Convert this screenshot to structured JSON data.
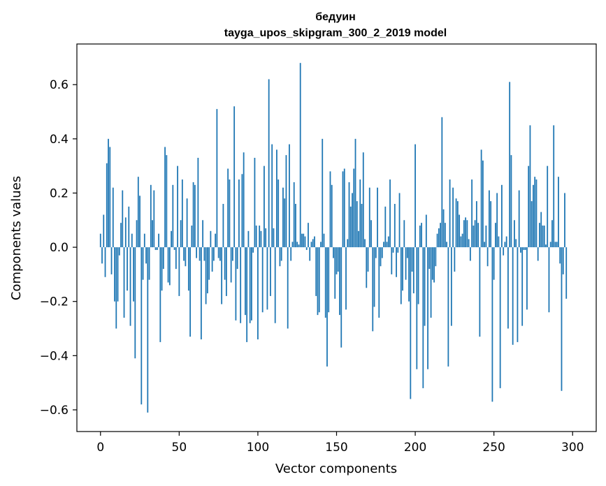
{
  "chart_data": {
    "type": "bar",
    "title": "бедуин",
    "subtitle": "tayga_upos_skipgram_300_2_2019 model",
    "xlabel": "Vector components",
    "ylabel": "Components values",
    "xlim": [
      -15,
      315
    ],
    "ylim": [
      -0.68,
      0.75
    ],
    "xticks": [
      0,
      50,
      100,
      150,
      200,
      250,
      300
    ],
    "xtick_labels": [
      "0",
      "50",
      "100",
      "150",
      "200",
      "250",
      "300"
    ],
    "yticks": [
      -0.6,
      -0.4,
      -0.2,
      0.0,
      0.2,
      0.4,
      0.6
    ],
    "ytick_labels": [
      "−0.6",
      "−0.4",
      "−0.2",
      "0.0",
      "0.2",
      "0.4",
      "0.6"
    ],
    "bar_color": "#1f77b4",
    "grid": false,
    "series": [
      {
        "values": [
          0.05,
          -0.06,
          0.12,
          -0.11,
          0.31,
          0.4,
          0.37,
          -0.1,
          0.22,
          -0.2,
          -0.3,
          -0.2,
          -0.03,
          0.09,
          0.21,
          -0.26,
          0.11,
          -0.16,
          0.15,
          -0.29,
          0.05,
          -0.2,
          -0.41,
          0.1,
          0.26,
          0.19,
          -0.58,
          -0.12,
          0.05,
          -0.06,
          -0.61,
          -0.12,
          0.23,
          0.1,
          0.21,
          -0.01,
          -0.01,
          0.05,
          -0.35,
          -0.16,
          -0.08,
          0.37,
          0.34,
          -0.13,
          -0.14,
          0.06,
          0.23,
          -0.01,
          -0.08,
          0.3,
          -0.18,
          0.1,
          0.25,
          -0.05,
          -0.07,
          0.18,
          -0.16,
          -0.33,
          0.08,
          0.24,
          0.23,
          -0.04,
          0.33,
          -0.05,
          -0.34,
          0.1,
          -0.05,
          -0.21,
          -0.17,
          -0.12,
          0.06,
          -0.09,
          -0.05,
          0.05,
          0.51,
          -0.04,
          -0.05,
          -0.21,
          0.16,
          -0.12,
          -0.18,
          0.29,
          0.25,
          -0.13,
          -0.05,
          0.52,
          -0.27,
          -0.08,
          0.25,
          -0.28,
          0.27,
          0.35,
          -0.25,
          -0.35,
          0.06,
          -0.28,
          -0.27,
          -0.02,
          0.33,
          0.08,
          -0.34,
          0.08,
          0.06,
          -0.24,
          0.3,
          0.07,
          -0.23,
          0.62,
          -0.18,
          0.38,
          0.07,
          -0.28,
          0.36,
          0.25,
          -0.07,
          -0.05,
          0.22,
          0.18,
          0.34,
          -0.3,
          0.38,
          -0.05,
          0.02,
          0.24,
          0.16,
          0.02,
          0.01,
          0.68,
          0.05,
          0.05,
          0.04,
          -0.01,
          0.09,
          -0.05,
          0.02,
          0.03,
          0.04,
          -0.18,
          -0.25,
          -0.24,
          0.02,
          0.4,
          0.05,
          -0.26,
          -0.44,
          -0.24,
          0.28,
          0.23,
          -0.04,
          -0.19,
          -0.1,
          -0.09,
          -0.25,
          -0.37,
          0.28,
          0.29,
          -0.23,
          0.03,
          0.24,
          0.15,
          0.2,
          0.29,
          0.4,
          0.17,
          0.06,
          0.25,
          0.16,
          0.35,
          0.03,
          -0.15,
          -0.09,
          0.22,
          0.1,
          -0.31,
          -0.22,
          -0.04,
          0.22,
          -0.26,
          -0.07,
          -0.04,
          0.02,
          0.15,
          0.02,
          0.04,
          0.25,
          -0.1,
          -0.02,
          0.16,
          -0.11,
          -0.02,
          0.2,
          -0.21,
          -0.16,
          0.1,
          -0.12,
          -0.04,
          -0.2,
          -0.56,
          -0.09,
          -0.17,
          0.38,
          -0.45,
          -0.21,
          0.08,
          0.09,
          -0.52,
          -0.29,
          0.12,
          -0.45,
          -0.08,
          -0.26,
          -0.12,
          -0.13,
          -0.07,
          0.05,
          0.07,
          0.09,
          0.48,
          0.14,
          0.09,
          0.02,
          -0.44,
          0.25,
          -0.29,
          0.22,
          -0.09,
          0.18,
          0.17,
          0.12,
          0.04,
          0.05,
          0.1,
          0.11,
          0.1,
          0.03,
          -0.05,
          0.25,
          0.08,
          0.1,
          0.17,
          0.09,
          -0.33,
          0.36,
          0.32,
          0.02,
          0.08,
          -0.07,
          0.21,
          0.17,
          -0.57,
          -0.12,
          0.09,
          0.2,
          0.04,
          -0.52,
          0.23,
          -0.03,
          0.02,
          0.04,
          -0.3,
          0.61,
          0.34,
          -0.36,
          0.1,
          0.03,
          -0.35,
          0.21,
          -0.02,
          -0.29,
          -0.01,
          -0.01,
          -0.23,
          0.3,
          0.45,
          0.17,
          0.23,
          0.26,
          0.25,
          -0.05,
          0.09,
          0.13,
          0.08,
          0.08,
          0.01,
          0.3,
          -0.24,
          0.02,
          0.1,
          0.45,
          0.02,
          0.02,
          0.26,
          -0.06,
          -0.53,
          -0.1,
          0.2,
          -0.19
        ]
      }
    ]
  }
}
